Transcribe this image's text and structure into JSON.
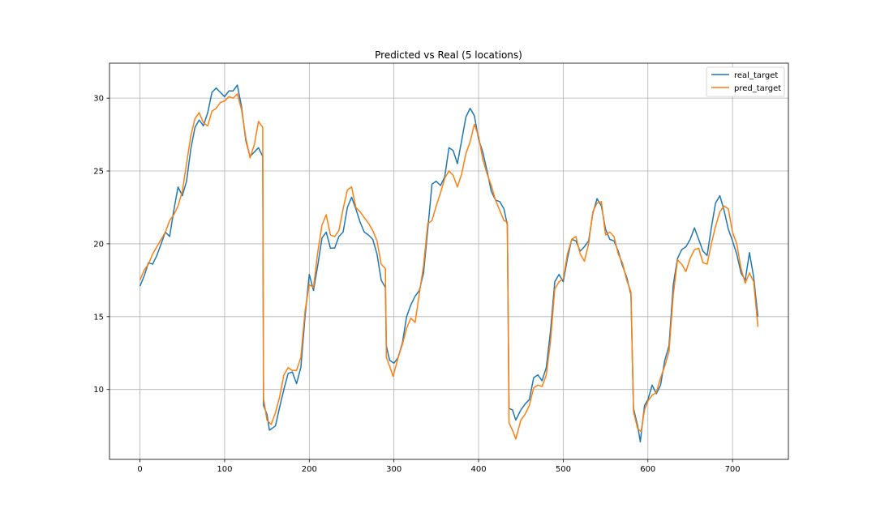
{
  "chart_data": {
    "type": "line",
    "title": "Predicted vs Real (5 locations)",
    "xlabel": "",
    "ylabel": "",
    "xlim": [
      -36,
      766
    ],
    "ylim": [
      5.2,
      32.4
    ],
    "xticks": [
      0,
      100,
      200,
      300,
      400,
      500,
      600,
      700
    ],
    "yticks": [
      10,
      15,
      20,
      25,
      30
    ],
    "grid": true,
    "legend_position": "top-right",
    "series": [
      {
        "name": "real_target",
        "color": "#1f77b4",
        "points": [
          [
            0,
            17.1
          ],
          [
            5,
            17.8
          ],
          [
            10,
            18.7
          ],
          [
            15,
            18.6
          ],
          [
            20,
            19.2
          ],
          [
            25,
            20.0
          ],
          [
            30,
            20.8
          ],
          [
            35,
            20.5
          ],
          [
            40,
            22.3
          ],
          [
            45,
            23.9
          ],
          [
            50,
            23.3
          ],
          [
            55,
            24.3
          ],
          [
            60,
            26.5
          ],
          [
            65,
            28.0
          ],
          [
            70,
            28.5
          ],
          [
            75,
            28.1
          ],
          [
            80,
            29.0
          ],
          [
            85,
            30.4
          ],
          [
            90,
            30.7
          ],
          [
            95,
            30.4
          ],
          [
            100,
            30.1
          ],
          [
            105,
            30.5
          ],
          [
            110,
            30.5
          ],
          [
            115,
            30.9
          ],
          [
            120,
            29.4
          ],
          [
            125,
            27.1
          ],
          [
            130,
            26.0
          ],
          [
            135,
            26.3
          ],
          [
            140,
            26.6
          ],
          [
            145,
            26.0
          ],
          [
            146,
            8.9
          ],
          [
            150,
            8.3
          ],
          [
            153,
            7.2
          ],
          [
            160,
            7.5
          ],
          [
            165,
            8.8
          ],
          [
            170,
            10.0
          ],
          [
            175,
            11.1
          ],
          [
            180,
            11.2
          ],
          [
            185,
            10.4
          ],
          [
            190,
            11.5
          ],
          [
            195,
            15.0
          ],
          [
            200,
            17.9
          ],
          [
            205,
            16.8
          ],
          [
            210,
            18.5
          ],
          [
            215,
            20.4
          ],
          [
            220,
            20.8
          ],
          [
            225,
            19.7
          ],
          [
            230,
            19.7
          ],
          [
            235,
            20.5
          ],
          [
            240,
            20.8
          ],
          [
            245,
            22.5
          ],
          [
            250,
            23.2
          ],
          [
            255,
            22.4
          ],
          [
            260,
            21.5
          ],
          [
            265,
            20.8
          ],
          [
            270,
            20.6
          ],
          [
            275,
            20.3
          ],
          [
            280,
            19.3
          ],
          [
            285,
            17.5
          ],
          [
            290,
            17.0
          ],
          [
            291,
            13.0
          ],
          [
            295,
            12.0
          ],
          [
            300,
            11.8
          ],
          [
            305,
            12.2
          ],
          [
            310,
            13.2
          ],
          [
            315,
            15.0
          ],
          [
            320,
            15.8
          ],
          [
            325,
            16.4
          ],
          [
            330,
            16.8
          ],
          [
            335,
            18.0
          ],
          [
            340,
            21.0
          ],
          [
            345,
            24.1
          ],
          [
            350,
            24.3
          ],
          [
            355,
            24.0
          ],
          [
            360,
            24.6
          ],
          [
            365,
            26.6
          ],
          [
            370,
            26.4
          ],
          [
            375,
            25.5
          ],
          [
            380,
            27.1
          ],
          [
            385,
            28.7
          ],
          [
            390,
            29.3
          ],
          [
            395,
            28.8
          ],
          [
            400,
            27.2
          ],
          [
            405,
            26.3
          ],
          [
            410,
            25.0
          ],
          [
            415,
            23.6
          ],
          [
            420,
            23.0
          ],
          [
            425,
            22.9
          ],
          [
            430,
            22.4
          ],
          [
            434,
            21.3
          ],
          [
            436,
            8.7
          ],
          [
            440,
            8.6
          ],
          [
            444,
            7.9
          ],
          [
            450,
            8.6
          ],
          [
            455,
            9.0
          ],
          [
            460,
            9.3
          ],
          [
            465,
            10.8
          ],
          [
            470,
            11.0
          ],
          [
            475,
            10.6
          ],
          [
            480,
            11.5
          ],
          [
            485,
            14.0
          ],
          [
            490,
            17.4
          ],
          [
            495,
            17.9
          ],
          [
            500,
            17.4
          ],
          [
            505,
            19.0
          ],
          [
            510,
            20.3
          ],
          [
            515,
            20.2
          ],
          [
            520,
            19.5
          ],
          [
            525,
            19.8
          ],
          [
            530,
            20.2
          ],
          [
            535,
            22.1
          ],
          [
            540,
            23.1
          ],
          [
            545,
            22.6
          ],
          [
            550,
            21.0
          ],
          [
            555,
            20.3
          ],
          [
            560,
            20.2
          ],
          [
            565,
            19.5
          ],
          [
            570,
            18.5
          ],
          [
            575,
            17.7
          ],
          [
            580,
            16.5
          ],
          [
            583,
            8.7
          ],
          [
            588,
            7.5
          ],
          [
            591,
            6.4
          ],
          [
            596,
            8.9
          ],
          [
            600,
            9.3
          ],
          [
            605,
            10.3
          ],
          [
            610,
            9.7
          ],
          [
            615,
            10.3
          ],
          [
            620,
            12.0
          ],
          [
            625,
            13.0
          ],
          [
            630,
            17.2
          ],
          [
            635,
            19.0
          ],
          [
            640,
            19.6
          ],
          [
            645,
            19.8
          ],
          [
            650,
            20.3
          ],
          [
            655,
            21.1
          ],
          [
            660,
            20.3
          ],
          [
            665,
            19.5
          ],
          [
            670,
            19.2
          ],
          [
            675,
            21.1
          ],
          [
            680,
            22.8
          ],
          [
            685,
            23.3
          ],
          [
            690,
            22.3
          ],
          [
            695,
            21.0
          ],
          [
            700,
            20.2
          ],
          [
            705,
            19.3
          ],
          [
            710,
            18.0
          ],
          [
            715,
            17.5
          ],
          [
            720,
            19.4
          ],
          [
            725,
            17.7
          ],
          [
            730,
            15.0
          ]
        ]
      },
      {
        "name": "pred_target",
        "color": "#ff7f0e",
        "points": [
          [
            0,
            17.5
          ],
          [
            5,
            18.2
          ],
          [
            10,
            18.6
          ],
          [
            15,
            19.3
          ],
          [
            20,
            19.8
          ],
          [
            25,
            20.3
          ],
          [
            30,
            20.8
          ],
          [
            35,
            21.6
          ],
          [
            40,
            22.0
          ],
          [
            45,
            22.6
          ],
          [
            50,
            23.6
          ],
          [
            55,
            25.5
          ],
          [
            60,
            27.4
          ],
          [
            65,
            28.6
          ],
          [
            70,
            29.0
          ],
          [
            75,
            28.3
          ],
          [
            80,
            28.1
          ],
          [
            85,
            29.1
          ],
          [
            90,
            29.3
          ],
          [
            95,
            29.7
          ],
          [
            100,
            29.8
          ],
          [
            105,
            30.1
          ],
          [
            110,
            30.0
          ],
          [
            115,
            30.3
          ],
          [
            120,
            29.2
          ],
          [
            125,
            27.3
          ],
          [
            130,
            25.9
          ],
          [
            135,
            26.8
          ],
          [
            140,
            28.4
          ],
          [
            145,
            28.0
          ],
          [
            146,
            9.4
          ],
          [
            150,
            7.9
          ],
          [
            155,
            7.6
          ],
          [
            160,
            8.4
          ],
          [
            165,
            9.5
          ],
          [
            170,
            11.0
          ],
          [
            175,
            11.5
          ],
          [
            180,
            11.3
          ],
          [
            185,
            11.3
          ],
          [
            190,
            12.2
          ],
          [
            195,
            15.4
          ],
          [
            200,
            17.2
          ],
          [
            205,
            17.0
          ],
          [
            210,
            19.4
          ],
          [
            215,
            21.3
          ],
          [
            220,
            22.0
          ],
          [
            225,
            20.6
          ],
          [
            230,
            20.5
          ],
          [
            235,
            20.9
          ],
          [
            240,
            22.4
          ],
          [
            245,
            23.7
          ],
          [
            250,
            23.9
          ],
          [
            255,
            22.5
          ],
          [
            260,
            22.2
          ],
          [
            265,
            21.8
          ],
          [
            270,
            21.4
          ],
          [
            275,
            20.9
          ],
          [
            280,
            20.2
          ],
          [
            285,
            18.6
          ],
          [
            290,
            18.3
          ],
          [
            291,
            12.2
          ],
          [
            295,
            11.6
          ],
          [
            299,
            10.9
          ],
          [
            305,
            12.2
          ],
          [
            310,
            13.1
          ],
          [
            315,
            14.2
          ],
          [
            320,
            14.9
          ],
          [
            325,
            14.6
          ],
          [
            330,
            16.6
          ],
          [
            335,
            18.5
          ],
          [
            340,
            21.4
          ],
          [
            345,
            21.6
          ],
          [
            350,
            22.6
          ],
          [
            355,
            23.5
          ],
          [
            360,
            24.5
          ],
          [
            365,
            25.0
          ],
          [
            370,
            24.7
          ],
          [
            375,
            23.9
          ],
          [
            380,
            24.8
          ],
          [
            385,
            26.2
          ],
          [
            390,
            27.0
          ],
          [
            395,
            28.2
          ],
          [
            400,
            27.4
          ],
          [
            405,
            25.8
          ],
          [
            410,
            24.8
          ],
          [
            415,
            24.0
          ],
          [
            420,
            23.0
          ],
          [
            425,
            22.3
          ],
          [
            430,
            21.6
          ],
          [
            434,
            21.5
          ],
          [
            436,
            7.7
          ],
          [
            440,
            7.2
          ],
          [
            444,
            6.6
          ],
          [
            450,
            7.9
          ],
          [
            455,
            8.3
          ],
          [
            460,
            8.9
          ],
          [
            465,
            10.1
          ],
          [
            470,
            10.3
          ],
          [
            475,
            10.2
          ],
          [
            480,
            11.0
          ],
          [
            485,
            13.3
          ],
          [
            490,
            16.9
          ],
          [
            495,
            17.4
          ],
          [
            500,
            17.6
          ],
          [
            505,
            19.3
          ],
          [
            510,
            20.3
          ],
          [
            515,
            20.5
          ],
          [
            520,
            19.3
          ],
          [
            525,
            18.8
          ],
          [
            530,
            20.0
          ],
          [
            535,
            22.2
          ],
          [
            540,
            22.8
          ],
          [
            545,
            22.9
          ],
          [
            550,
            20.6
          ],
          [
            555,
            20.8
          ],
          [
            560,
            20.5
          ],
          [
            565,
            19.3
          ],
          [
            570,
            18.7
          ],
          [
            575,
            17.5
          ],
          [
            580,
            16.7
          ],
          [
            583,
            8.5
          ],
          [
            588,
            7.3
          ],
          [
            592,
            7.1
          ],
          [
            596,
            8.6
          ],
          [
            600,
            9.2
          ],
          [
            605,
            9.6
          ],
          [
            610,
            9.8
          ],
          [
            615,
            10.8
          ],
          [
            620,
            11.6
          ],
          [
            625,
            12.6
          ],
          [
            630,
            16.5
          ],
          [
            635,
            18.9
          ],
          [
            640,
            18.6
          ],
          [
            645,
            18.1
          ],
          [
            650,
            19.0
          ],
          [
            655,
            19.6
          ],
          [
            660,
            19.7
          ],
          [
            665,
            18.7
          ],
          [
            670,
            18.6
          ],
          [
            675,
            20.0
          ],
          [
            680,
            21.2
          ],
          [
            685,
            22.2
          ],
          [
            690,
            22.6
          ],
          [
            695,
            22.4
          ],
          [
            700,
            20.8
          ],
          [
            705,
            20.0
          ],
          [
            710,
            18.3
          ],
          [
            715,
            17.3
          ],
          [
            720,
            18.0
          ],
          [
            725,
            17.4
          ],
          [
            730,
            14.3
          ]
        ]
      }
    ]
  }
}
